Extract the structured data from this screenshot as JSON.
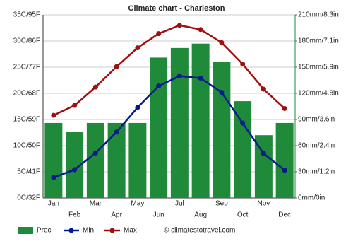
{
  "chart_data": {
    "type": "climate",
    "title": "Climate chart - Charleston",
    "categories": [
      "Jan",
      "Feb",
      "Mar",
      "Apr",
      "May",
      "Jun",
      "Jul",
      "Aug",
      "Sep",
      "Oct",
      "Nov",
      "Dec"
    ],
    "series": [
      {
        "name": "Prec",
        "color": "#1e8a3a",
        "axis": "y2",
        "kind": "bar",
        "values": [
          86,
          76,
          86,
          86,
          86,
          161,
          172,
          177,
          156,
          111,
          72,
          86
        ]
      },
      {
        "name": "Min",
        "color": "#00198c",
        "kind": "line",
        "values": [
          3.9,
          5.4,
          8.6,
          12.6,
          17.3,
          21.4,
          23.3,
          22.9,
          20.2,
          14.3,
          8.5,
          5.3
        ]
      },
      {
        "name": "Max",
        "color": "#a00f0f",
        "kind": "line",
        "values": [
          15.8,
          17.7,
          21.2,
          25.1,
          28.7,
          31.4,
          33.0,
          32.2,
          29.7,
          25.6,
          20.8,
          17.1
        ]
      }
    ],
    "ylim": [
      0,
      35
    ],
    "yticks": [
      {
        "value": 0,
        "label": "0C/32F"
      },
      {
        "value": 5,
        "label": "5C/41F"
      },
      {
        "value": 10,
        "label": "10C/50F"
      },
      {
        "value": 15,
        "label": "15C/59F"
      },
      {
        "value": 20,
        "label": "20C/68F"
      },
      {
        "value": 25,
        "label": "25C/77F"
      },
      {
        "value": 30,
        "label": "30C/86F"
      },
      {
        "value": 35,
        "label": "35C/95F"
      }
    ],
    "y2lim": [
      0,
      210
    ],
    "y2ticks": [
      {
        "value": 0,
        "label": "0mm/0in"
      },
      {
        "value": 30,
        "label": "30mm/1.2in"
      },
      {
        "value": 60,
        "label": "60mm/2.4in"
      },
      {
        "value": 90,
        "label": "90mm/3.6in"
      },
      {
        "value": 120,
        "label": "120mm/4.8in"
      },
      {
        "value": 150,
        "label": "150mm/5.9in"
      },
      {
        "value": 180,
        "label": "180mm/7.1in"
      },
      {
        "value": 210,
        "label": "210mm/8.3in"
      }
    ],
    "grid": true,
    "credit": "© climatestotravel.com"
  }
}
